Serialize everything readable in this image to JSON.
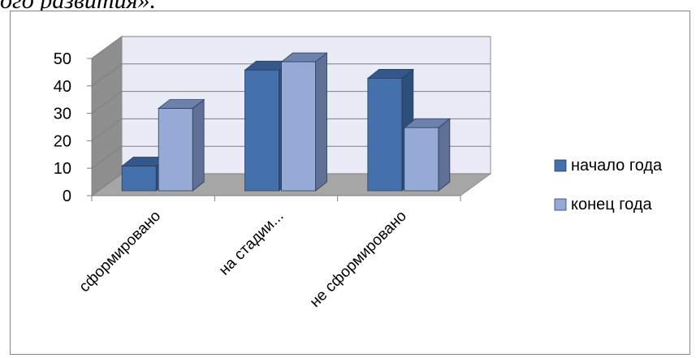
{
  "page": {
    "heading_fragment": "ого развития»."
  },
  "chart_data": {
    "type": "bar",
    "three_d": true,
    "categories": [
      "сформировано",
      "на стадии...",
      "не сформировано"
    ],
    "series": [
      {
        "name": "начало года",
        "values": [
          9,
          44,
          41
        ],
        "color": "#4471ab",
        "side_color": "#2d4f7c",
        "top_color": "#34588a"
      },
      {
        "name": "конец года",
        "values": [
          30,
          47,
          23
        ],
        "color": "#95abd5",
        "side_color": "#5f6f95",
        "top_color": "#6d81ad"
      }
    ],
    "ylim": [
      0,
      50
    ],
    "yticks": [
      0,
      10,
      20,
      30,
      40,
      50
    ],
    "grid": true,
    "legend_position": "right",
    "wall_color": "#e9ecf7",
    "floor_color": "#a6a6a6"
  }
}
